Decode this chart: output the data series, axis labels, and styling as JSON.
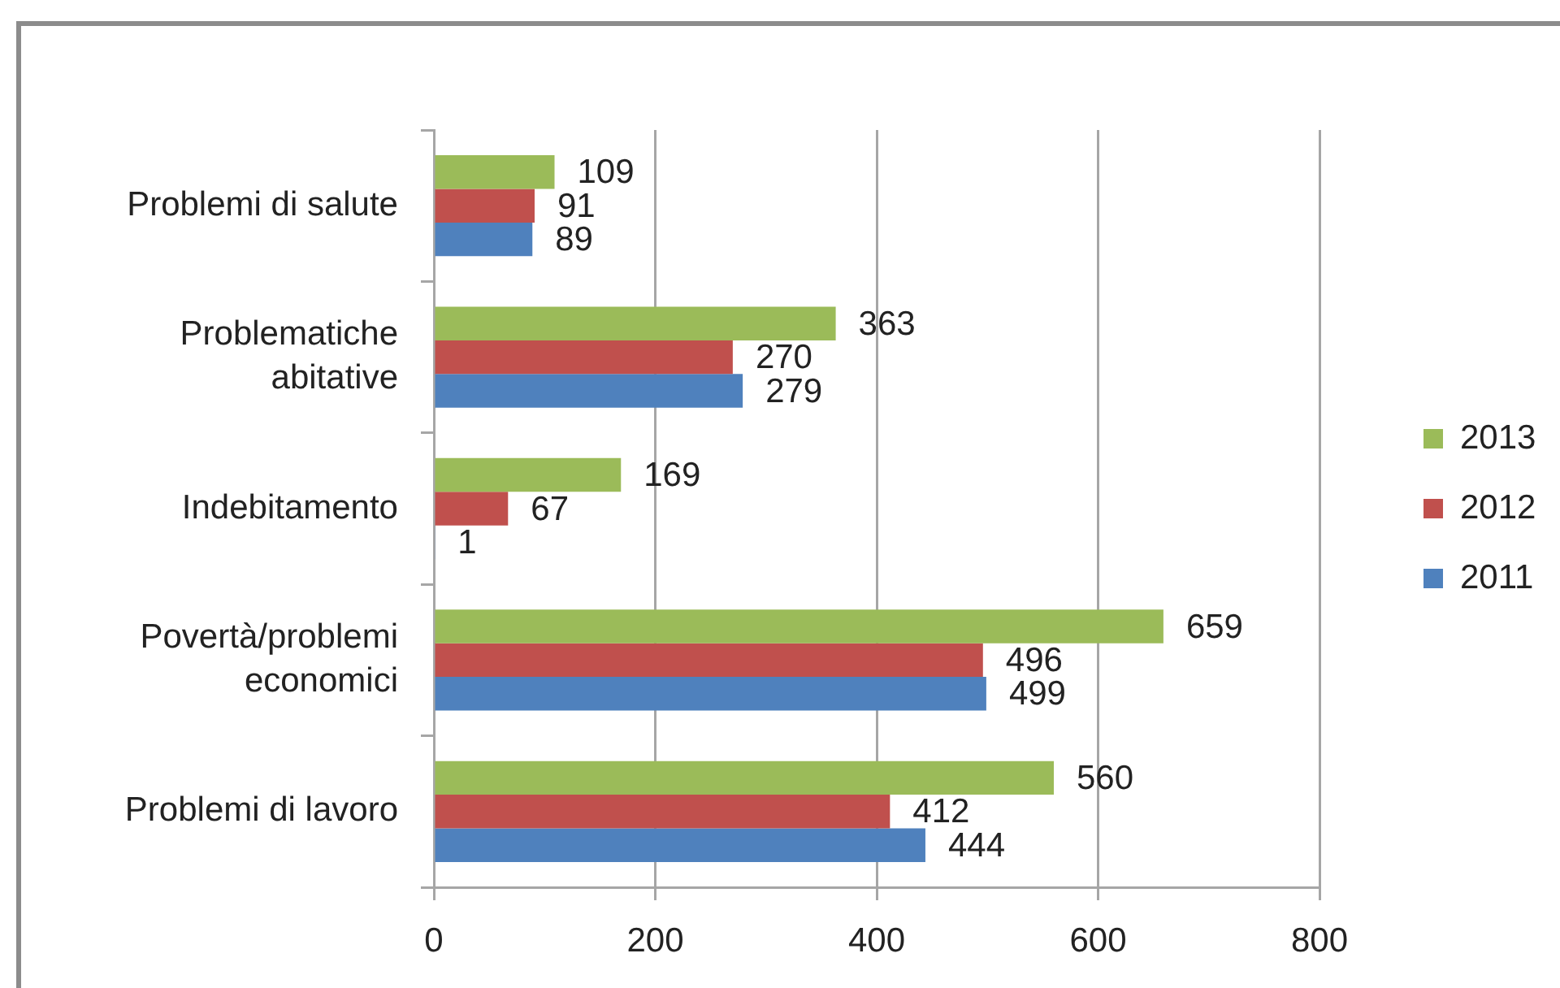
{
  "chart_data": {
    "type": "bar",
    "orientation": "horizontal",
    "categories": [
      "Problemi di salute",
      "Problematiche abitative",
      "Indebitamento",
      "Povertà/problemi economici",
      "Problemi di lavoro"
    ],
    "series": [
      {
        "name": "2013",
        "color": "#9bbb59",
        "values": [
          109,
          363,
          169,
          659,
          560
        ]
      },
      {
        "name": "2012",
        "color": "#c0504d",
        "values": [
          91,
          270,
          67,
          496,
          412
        ]
      },
      {
        "name": "2011",
        "color": "#4f81bd",
        "values": [
          89,
          279,
          1,
          499,
          444
        ]
      }
    ],
    "xlim": [
      0,
      800
    ],
    "xticks": [
      0,
      200,
      400,
      600,
      800
    ],
    "grid": "x",
    "legend": "right",
    "data_labels": true
  }
}
